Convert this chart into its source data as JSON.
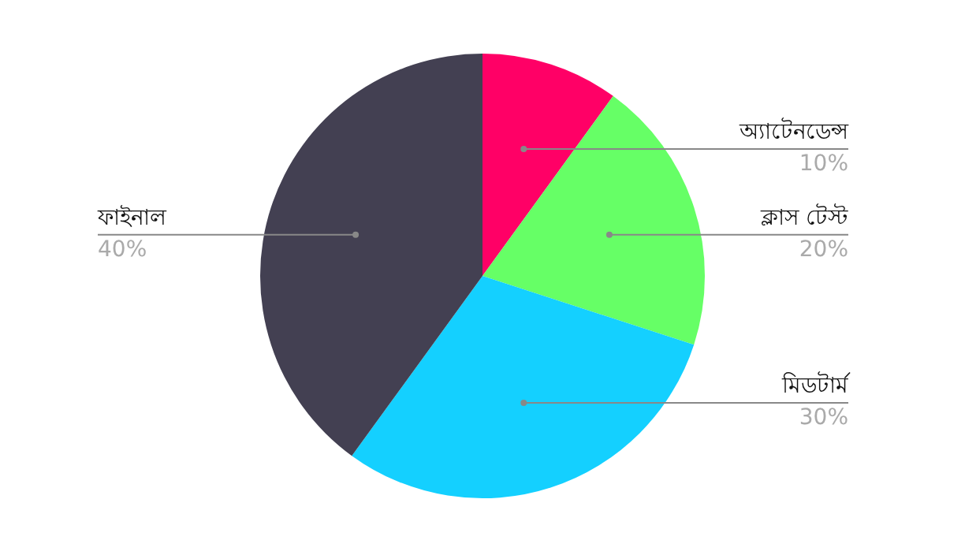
{
  "chart_data": {
    "type": "pie",
    "categories": [
      "অ্যাটেনডেন্স",
      "ক্লাস টেস্ট",
      "মিডটার্ম",
      "ফাইনাল"
    ],
    "values": [
      10,
      20,
      30,
      40
    ],
    "colors": [
      "#ff0066",
      "#66ff66",
      "#14d0ff",
      "#434052"
    ],
    "value_labels": [
      "10%",
      "20%",
      "30%",
      "40%"
    ],
    "legend": false
  }
}
